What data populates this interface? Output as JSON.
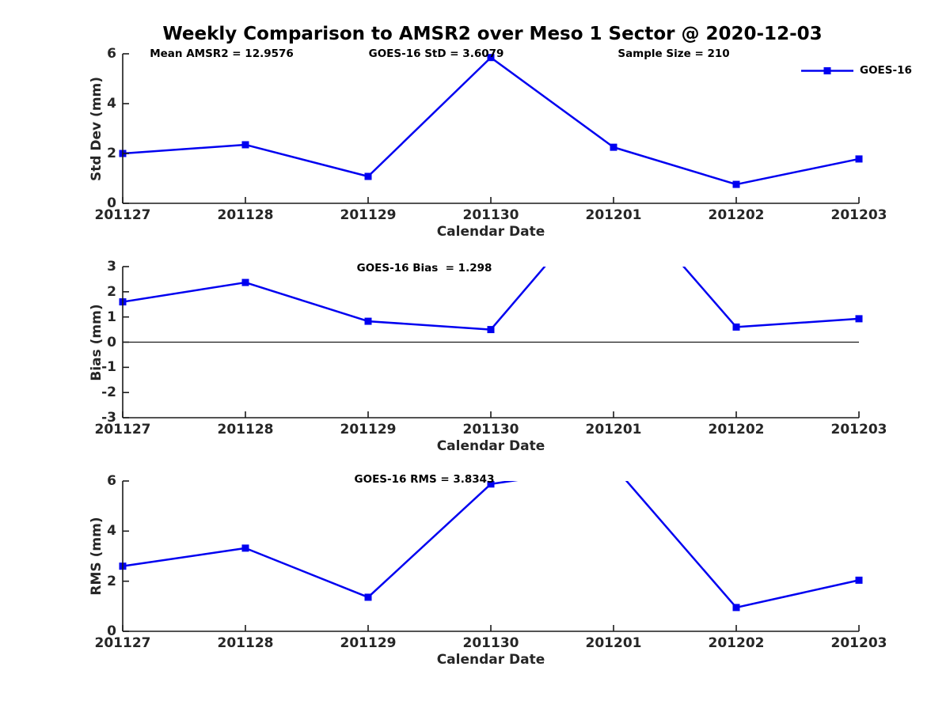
{
  "title": "Weekly Comparison to AMSR2 over Meso 1 Sector @ 2020-12-03",
  "legend": {
    "series_label": "GOES-16"
  },
  "colors": {
    "series_blue": "#0000f0",
    "axis": "#1a1a1a",
    "tick_text": "#262626",
    "title_text": "#000000"
  },
  "chart_data": [
    {
      "type": "line",
      "id": "std-dev",
      "title": "",
      "ylabel": "Std Dev (mm)",
      "xlabel": "Calendar Date",
      "categories": [
        "201127",
        "201128",
        "201129",
        "201130",
        "201201",
        "201202",
        "201203"
      ],
      "series": [
        {
          "name": "GOES-16",
          "values": [
            2.0,
            2.35,
            1.08,
            5.85,
            2.25,
            0.76,
            1.78
          ]
        }
      ],
      "ylim": [
        0,
        6
      ],
      "yticks": [
        0,
        2,
        4,
        6
      ],
      "grid": false,
      "legend_position": "top-right",
      "annotations": [
        "Mean AMSR2 = 12.9576",
        "GOES-16 StD = 3.6079",
        "Sample Size = 210"
      ]
    },
    {
      "type": "line",
      "id": "bias",
      "title": "",
      "ylabel": "Bias (mm)",
      "xlabel": "Calendar Date",
      "categories": [
        "201127",
        "201128",
        "201129",
        "201130",
        "201201",
        "201202",
        "201203"
      ],
      "series": [
        {
          "name": "GOES-16",
          "values": [
            1.6,
            2.37,
            0.83,
            0.5,
            6.2,
            0.6,
            0.93
          ]
        }
      ],
      "ylim": [
        -3,
        3
      ],
      "yticks": [
        -3,
        -2,
        -1,
        0,
        1,
        2,
        3
      ],
      "zero_line": true,
      "clipped_above_ylim": true,
      "grid": false,
      "annotations": [
        "GOES-16 Bias  = 1.298"
      ]
    },
    {
      "type": "line",
      "id": "rms",
      "title": "",
      "ylabel": "RMS (mm)",
      "xlabel": "Calendar Date",
      "categories": [
        "201127",
        "201128",
        "201129",
        "201130",
        "201201",
        "201202",
        "201203"
      ],
      "series": [
        {
          "name": "GOES-16",
          "values": [
            2.6,
            3.32,
            1.36,
            5.88,
            6.6,
            0.95,
            2.04
          ]
        }
      ],
      "ylim": [
        0,
        6
      ],
      "yticks": [
        0,
        2,
        4,
        6
      ],
      "clipped_above_ylim": true,
      "grid": false,
      "annotations": [
        "GOES-16 RMS = 3.8343"
      ]
    }
  ]
}
